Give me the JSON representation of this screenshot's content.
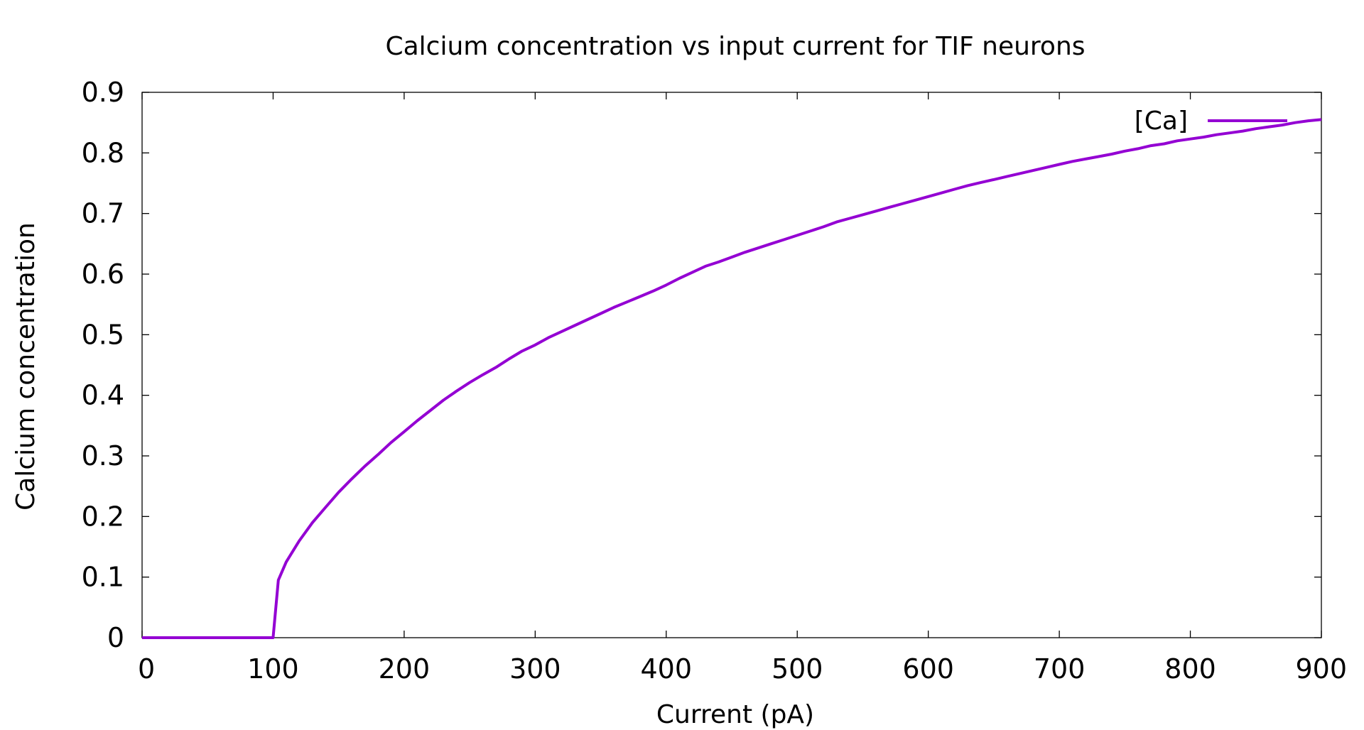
{
  "chart_data": {
    "type": "line",
    "title": "Calcium concentration vs input current for TIF neurons",
    "xlabel": "Current (pA)",
    "ylabel": "Calcium concentration",
    "xlim": [
      0,
      900
    ],
    "ylim": [
      0,
      0.9
    ],
    "xticks": [
      "0",
      "100",
      "200",
      "300",
      "400",
      "500",
      "600",
      "700",
      "800",
      "900"
    ],
    "yticks": [
      "0",
      "0.1",
      "0.2",
      "0.3",
      "0.4",
      "0.5",
      "0.6",
      "0.7",
      "0.8",
      "0.9"
    ],
    "grid": false,
    "legend_position": "top-right",
    "series": [
      {
        "name": "[Ca]",
        "color": "#9400d3",
        "x": [
          0,
          50,
          100,
          104,
          110,
          120,
          130,
          140,
          150,
          160,
          170,
          180,
          190,
          200,
          210,
          220,
          230,
          240,
          250,
          260,
          270,
          280,
          290,
          300,
          310,
          320,
          330,
          340,
          350,
          360,
          370,
          380,
          390,
          400,
          410,
          420,
          430,
          440,
          450,
          460,
          470,
          480,
          490,
          500,
          510,
          520,
          530,
          540,
          550,
          560,
          570,
          580,
          590,
          600,
          610,
          620,
          630,
          640,
          650,
          660,
          670,
          680,
          690,
          700,
          710,
          720,
          730,
          740,
          750,
          760,
          770,
          780,
          790,
          800,
          810,
          820,
          830,
          840,
          850,
          860,
          870,
          880,
          890,
          900
        ],
        "y": [
          0,
          0,
          0,
          0.095,
          0.125,
          0.16,
          0.19,
          0.215,
          0.24,
          0.262,
          0.283,
          0.302,
          0.322,
          0.34,
          0.358,
          0.375,
          0.392,
          0.407,
          0.421,
          0.434,
          0.446,
          0.46,
          0.473,
          0.483,
          0.495,
          0.505,
          0.515,
          0.525,
          0.535,
          0.545,
          0.554,
          0.563,
          0.572,
          0.582,
          0.593,
          0.603,
          0.613,
          0.62,
          0.628,
          0.636,
          0.643,
          0.65,
          0.657,
          0.664,
          0.671,
          0.678,
          0.686,
          0.692,
          0.698,
          0.704,
          0.71,
          0.716,
          0.722,
          0.728,
          0.734,
          0.74,
          0.746,
          0.751,
          0.756,
          0.761,
          0.766,
          0.771,
          0.776,
          0.781,
          0.786,
          0.79,
          0.794,
          0.798,
          0.803,
          0.807,
          0.812,
          0.815,
          0.82,
          0.823,
          0.826,
          0.83,
          0.833,
          0.836,
          0.84,
          0.843,
          0.846,
          0.85,
          0.853,
          0.855
        ]
      }
    ]
  }
}
